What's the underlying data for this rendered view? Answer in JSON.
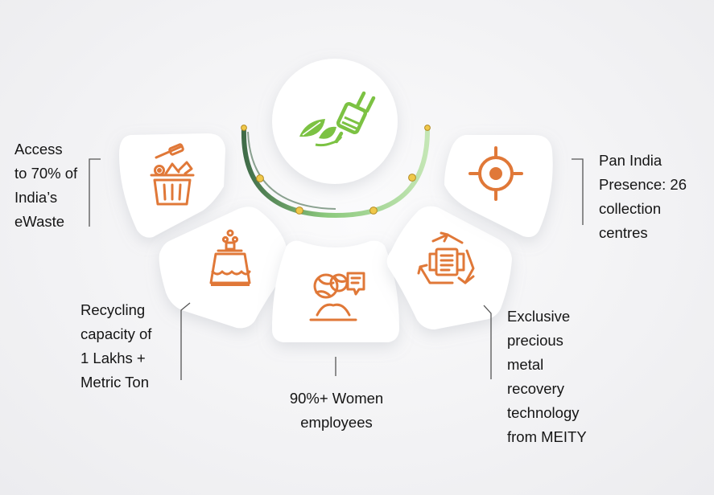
{
  "features": [
    {
      "id": "ewaste",
      "text": "Access\nto 70% of\nIndia’s\neWaste",
      "icon": "trash-bin-icon"
    },
    {
      "id": "capacity",
      "text": "Recycling\ncapacity of\n1 Lakhs +\nMetric Ton",
      "icon": "factory-bag-icon"
    },
    {
      "id": "women",
      "text": "90%+ Women\nemployees",
      "icon": "women-chat-icon"
    },
    {
      "id": "metal",
      "text": "Exclusive\nprecious\nmetal\nrecovery\ntechnology\nfrom MEITY",
      "icon": "recycle-document-icon"
    },
    {
      "id": "presence",
      "text": "Pan India\nPresence: 26\ncollection\ncentres",
      "icon": "location-target-icon"
    }
  ],
  "hub": {
    "icon": "leaf-plug-icon"
  },
  "colors": {
    "accent": "#e07838",
    "green": "#6abd45",
    "arc_dark": "#3f6b48",
    "dot": "#f0c84a"
  }
}
